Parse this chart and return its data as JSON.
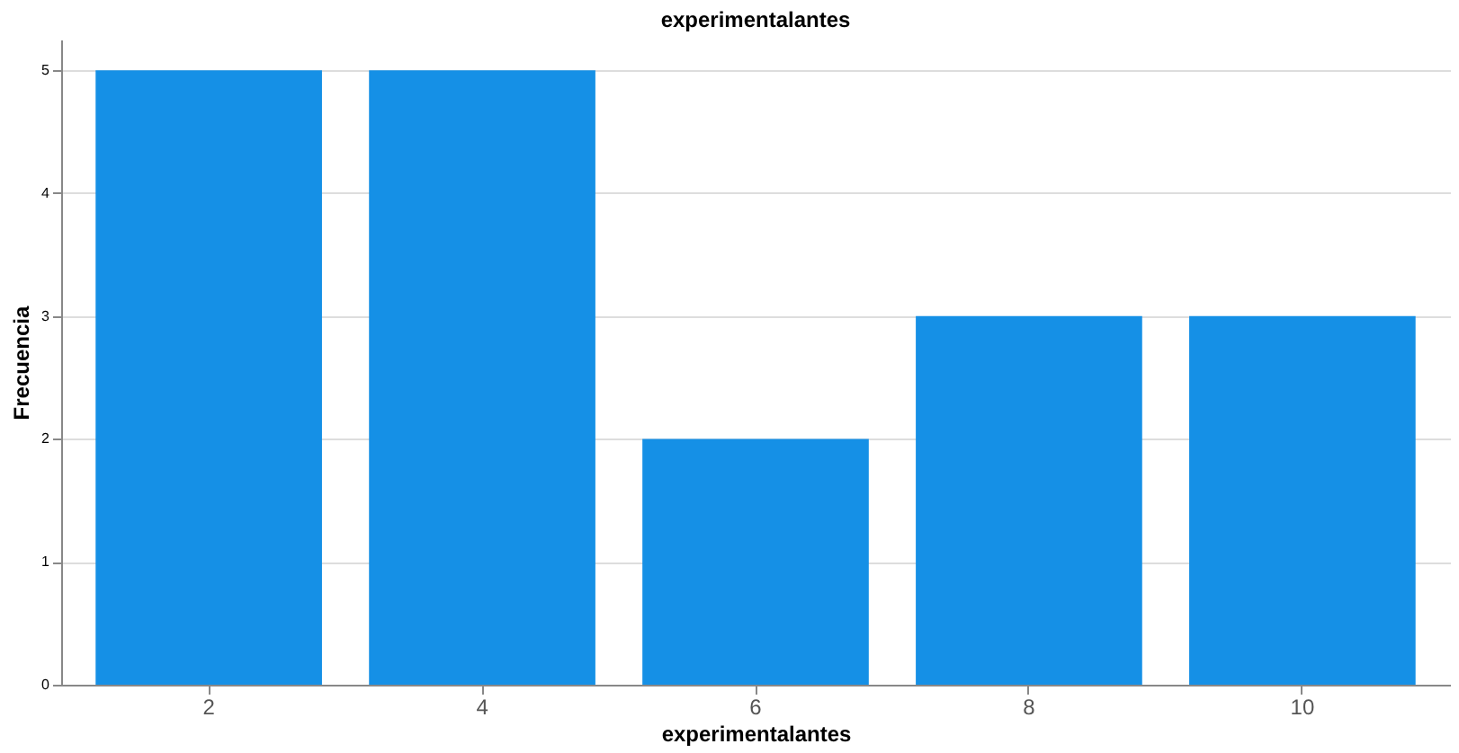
{
  "chart_data": {
    "type": "bar",
    "title": "experimentalantes",
    "xlabel": "experimentalantes",
    "ylabel": "Frecuencia",
    "categories": [
      "2",
      "4",
      "6",
      "8",
      "10"
    ],
    "values": [
      5,
      5,
      2,
      3,
      3
    ],
    "color": "#1590e6",
    "ylim": [
      0,
      5.25
    ],
    "yticks": [
      0,
      1,
      2,
      3,
      4,
      5
    ],
    "grid": "y"
  }
}
